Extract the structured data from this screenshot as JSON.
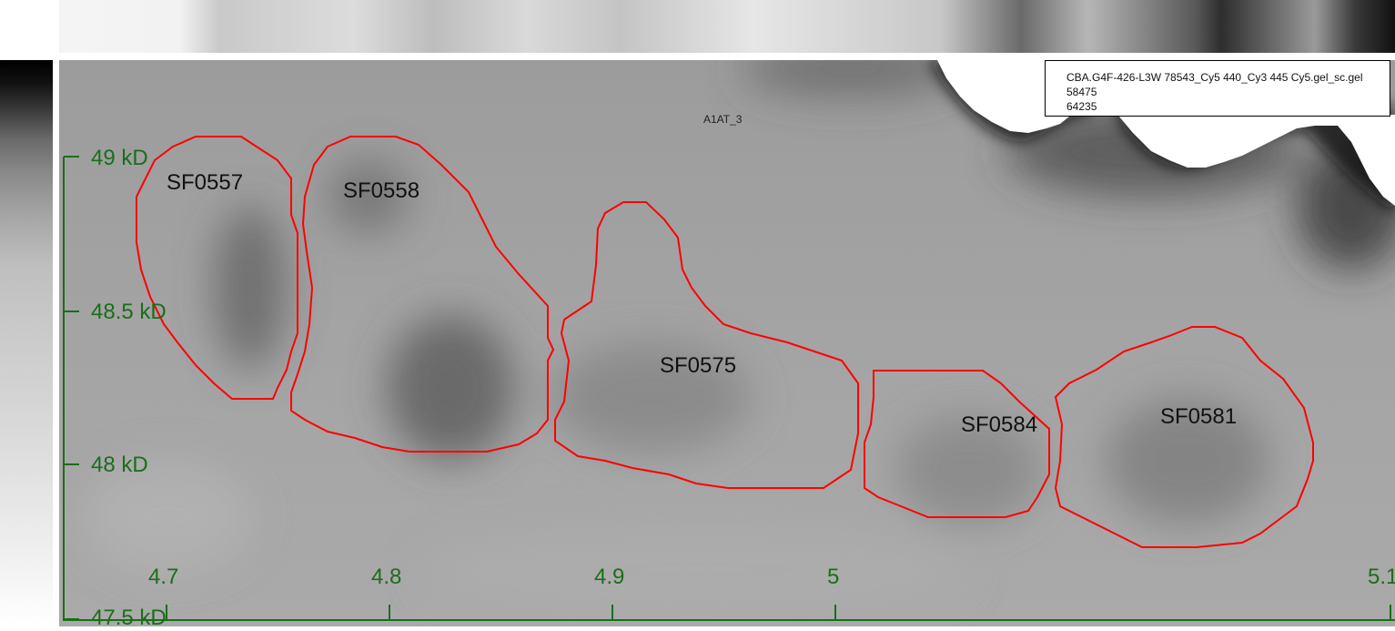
{
  "gel_name": "A1AT_3",
  "info_box": {
    "filename": "CBA.G4F-426-L3W 78543_Cy5 440_Cy3 445 Cy5.gel_sc.gel",
    "value1": "58475",
    "value2": "64235"
  },
  "y_axis": {
    "ticks": [
      "49 kD",
      "48.5 kD",
      "48 kD",
      "47.5 kD"
    ]
  },
  "x_axis": {
    "ticks": [
      "4.7",
      "4.8",
      "4.9",
      "5",
      "5.1"
    ]
  },
  "spots": [
    "SF0557",
    "SF0558",
    "SF0575",
    "SF0584",
    "SF0581"
  ],
  "colors": {
    "axis": "#1a6e1a",
    "outline": "#ff0000"
  }
}
